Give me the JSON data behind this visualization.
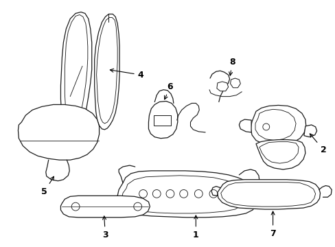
{
  "bg_color": "#ffffff",
  "line_color": "#1a1a1a",
  "lw": 0.9,
  "fig_w": 4.89,
  "fig_h": 3.6,
  "dpi": 100
}
